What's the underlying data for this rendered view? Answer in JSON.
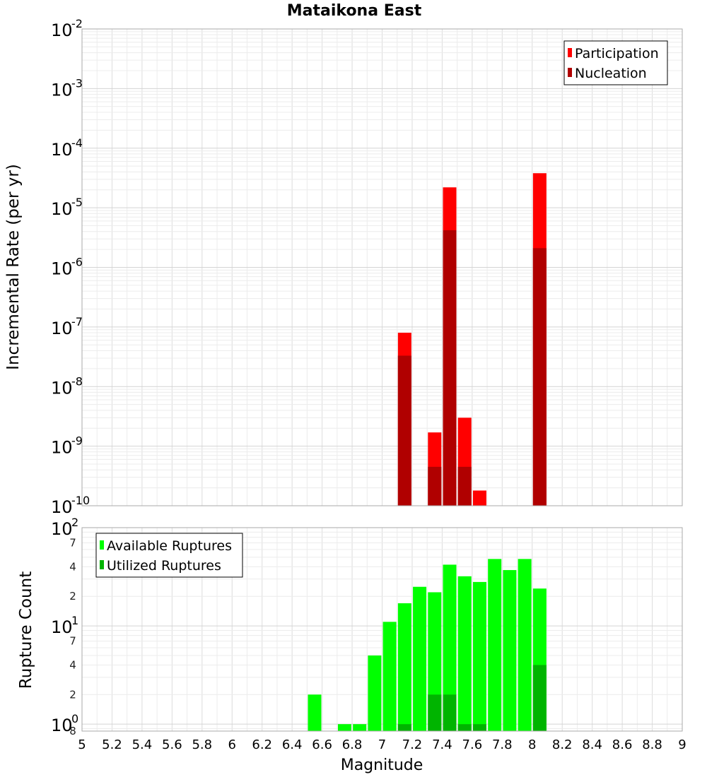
{
  "chart_data": {
    "type": "bar",
    "title": "Mataikona East",
    "xlabel": "Magnitude",
    "xlim": [
      5,
      9
    ],
    "x_ticks": [
      "5",
      "5.2",
      "5.4",
      "5.6",
      "5.8",
      "6",
      "6.2",
      "6.4",
      "6.6",
      "6.8",
      "7",
      "7.2",
      "7.4",
      "7.6",
      "7.8",
      "8",
      "8.2",
      "8.4",
      "8.6",
      "8.8",
      "9"
    ],
    "panels": [
      {
        "ylabel": "Incremental Rate (per yr)",
        "yscale": "log",
        "ylim": [
          1e-10,
          0.01
        ],
        "y_tick_exponents": [
          "-10",
          "-9",
          "-8",
          "-7",
          "-6",
          "-5",
          "-4",
          "-3",
          "-2"
        ],
        "grid": true,
        "legend_position": "top-right",
        "series": [
          {
            "name": "Participation",
            "color": "#ff0000",
            "x": [
              7.15,
              7.35,
              7.45,
              7.55,
              7.65,
              8.05
            ],
            "values": [
              8e-08,
              1.7e-09,
              2.2e-05,
              3e-09,
              1.8e-10,
              3.8e-05
            ]
          },
          {
            "name": "Nucleation",
            "color": "#b00000",
            "x": [
              7.15,
              7.35,
              7.45,
              7.55,
              8.05
            ],
            "values": [
              3.3e-08,
              4.5e-10,
              4.2e-06,
              4.5e-10,
              2.1e-06
            ]
          }
        ]
      },
      {
        "ylabel": "Rupture Count",
        "yscale": "log",
        "ylim": [
          0.85,
          100
        ],
        "y_major_ticks": [
          {
            "value": 1,
            "base": "10",
            "exp": "0"
          },
          {
            "value": 10,
            "base": "10",
            "exp": "1"
          },
          {
            "value": 100,
            "base": "10",
            "exp": "2"
          }
        ],
        "y_minor_ticks": [
          {
            "value": 0.85,
            "label": "8"
          },
          {
            "value": 2,
            "label": "2"
          },
          {
            "value": 4,
            "label": "4"
          },
          {
            "value": 7,
            "label": "7"
          },
          {
            "value": 20,
            "label": "2"
          },
          {
            "value": 40,
            "label": "4"
          },
          {
            "value": 70,
            "label": "7"
          }
        ],
        "grid": true,
        "legend_position": "top-left",
        "series": [
          {
            "name": "Available Ruptures",
            "color": "#00ff00",
            "x": [
              6.55,
              6.75,
              6.85,
              6.95,
              7.05,
              7.15,
              7.25,
              7.35,
              7.45,
              7.55,
              7.65,
              7.75,
              7.85,
              7.95,
              8.05
            ],
            "values": [
              2,
              1,
              1,
              5,
              11,
              17,
              25,
              22,
              42,
              32,
              28,
              48,
              37,
              48,
              24
            ]
          },
          {
            "name": "Utilized Ruptures",
            "color": "#00b400",
            "x": [
              7.15,
              7.35,
              7.45,
              7.55,
              7.65,
              8.05
            ],
            "values": [
              1,
              2,
              2,
              1,
              1,
              4
            ]
          }
        ]
      }
    ]
  }
}
